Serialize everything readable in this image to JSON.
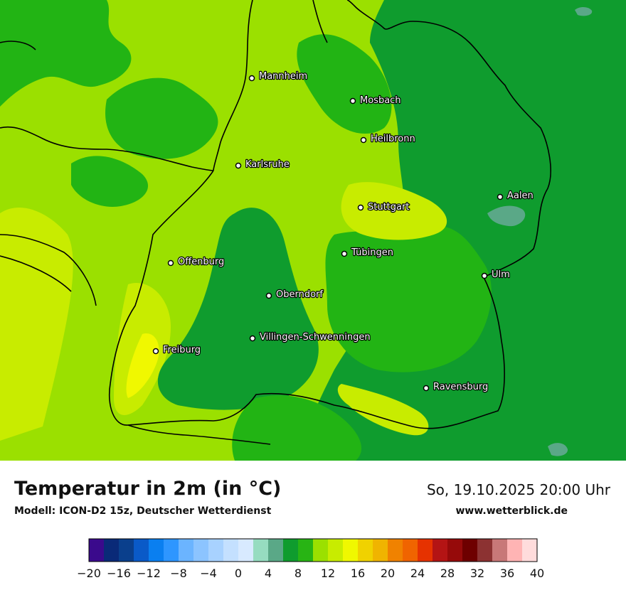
{
  "title": "Temperatur in 2m (in °C)",
  "model": "Modell: ICON-D2 15z, Deutscher Wetterdienst",
  "datetime": "So, 19.10.2025 20:00 Uhr",
  "website": "www.wetterblick.de",
  "cities": [
    {
      "name": "Mannheim"
    },
    {
      "name": "Mosbach"
    },
    {
      "name": "Heilbronn"
    },
    {
      "name": "Karlsruhe"
    },
    {
      "name": "Aalen"
    },
    {
      "name": "Stuttgart"
    },
    {
      "name": "Tübingen"
    },
    {
      "name": "Offenburg"
    },
    {
      "name": "Ulm"
    },
    {
      "name": "Oberndorf"
    },
    {
      "name": "Villingen-Schwenningen"
    },
    {
      "name": "Freiburg"
    },
    {
      "name": "Ravensburg"
    }
  ],
  "legend": {
    "ticks": [
      "−20",
      "−16",
      "−12",
      "−8",
      "−4",
      "0",
      "4",
      "8",
      "12",
      "16",
      "20",
      "24",
      "28",
      "32",
      "36",
      "40"
    ],
    "colors": [
      "#3a0a8c",
      "#0a2a78",
      "#0a3f8c",
      "#0a5ac8",
      "#0a7ff0",
      "#2e96ff",
      "#6bb4ff",
      "#8cc4ff",
      "#a8d2ff",
      "#c4e0ff",
      "#d8eaff",
      "#96dcc0",
      "#5aa887",
      "#0f9c2e",
      "#28b414",
      "#9be000",
      "#c8ec00",
      "#f0f800",
      "#f0d200",
      "#f0b400",
      "#f08200",
      "#f06400",
      "#e63200",
      "#b41414",
      "#960a0a",
      "#6e0000",
      "#8c3232",
      "#c87878",
      "#ffb4b4",
      "#ffdcdc"
    ]
  },
  "map_colors": {
    "dark_green": "#0f9c2e",
    "mid_green": "#22b414",
    "light_green": "#9be000",
    "yellow_green": "#c8ec00",
    "yellow": "#f0f800",
    "teal": "#5aa887"
  }
}
